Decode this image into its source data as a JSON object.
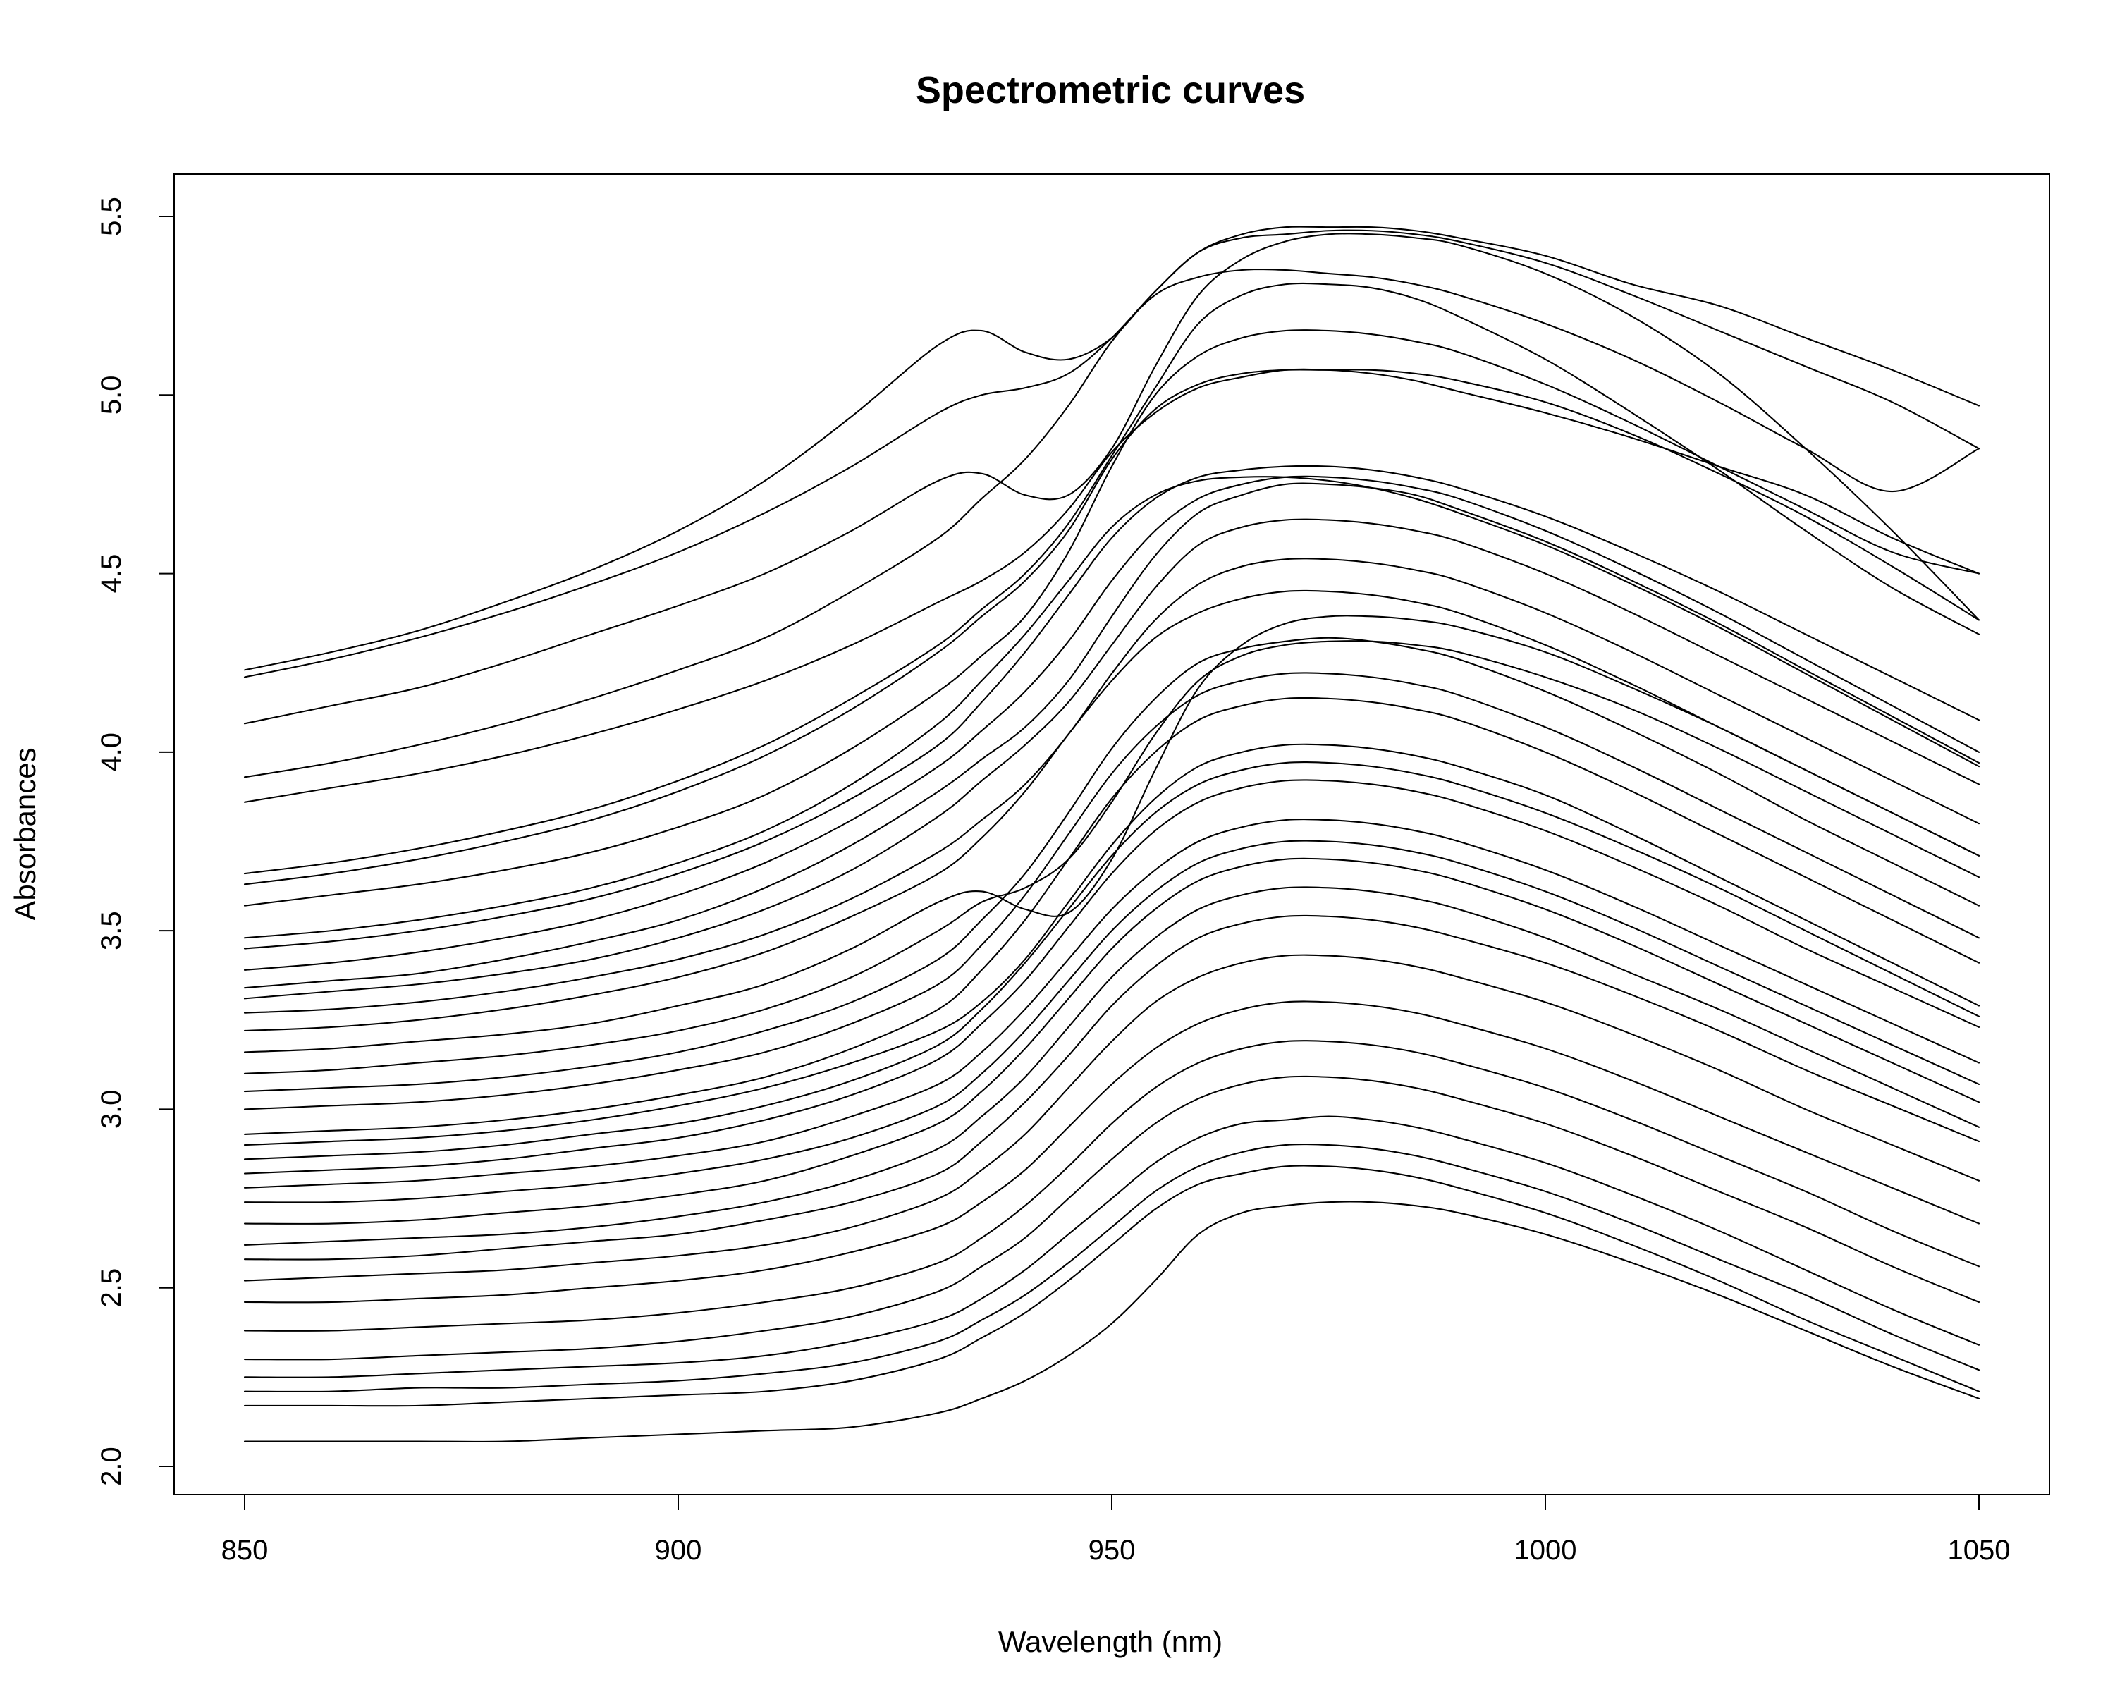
{
  "chart_data": {
    "type": "line",
    "title": "Spectrometric curves",
    "xlabel": "Wavelength (nm)",
    "ylabel": "Absorbances",
    "xlim": [
      850,
      1050
    ],
    "ylim": [
      2.0,
      5.5
    ],
    "x_ticks": [
      850,
      900,
      950,
      1000,
      1050
    ],
    "y_ticks": [
      2.0,
      2.5,
      3.0,
      3.5,
      4.0,
      4.5,
      5.0,
      5.5
    ],
    "x_tick_labels": [
      "850",
      "900",
      "950",
      "1000",
      "1050"
    ],
    "y_tick_labels": [
      "2.0",
      "2.5",
      "3.0",
      "3.5",
      "4.0",
      "4.5",
      "5.0",
      "5.5"
    ],
    "grid": false,
    "legend": "none",
    "line_color": "#000000",
    "x": [
      850,
      860,
      870,
      880,
      890,
      900,
      910,
      920,
      930,
      935,
      940,
      945,
      950,
      955,
      960,
      965,
      970,
      975,
      980,
      985,
      990,
      1000,
      1010,
      1020,
      1030,
      1040,
      1050
    ],
    "series": [
      {
        "values": [
          2.07,
          2.07,
          2.07,
          2.07,
          2.08,
          2.09,
          2.1,
          2.11,
          2.15,
          2.19,
          2.24,
          2.31,
          2.4,
          2.52,
          2.65,
          2.71,
          2.73,
          2.74,
          2.74,
          2.73,
          2.71,
          2.65,
          2.57,
          2.48,
          2.38,
          2.28,
          2.19
        ]
      },
      {
        "values": [
          2.17,
          2.17,
          2.17,
          2.18,
          2.19,
          2.2,
          2.21,
          2.24,
          2.3,
          2.36,
          2.43,
          2.52,
          2.62,
          2.72,
          2.79,
          2.82,
          2.84,
          2.84,
          2.83,
          2.81,
          2.78,
          2.71,
          2.62,
          2.52,
          2.41,
          2.31,
          2.21
        ]
      },
      {
        "values": [
          2.21,
          2.21,
          2.22,
          2.22,
          2.23,
          2.24,
          2.26,
          2.29,
          2.35,
          2.41,
          2.48,
          2.57,
          2.67,
          2.77,
          2.84,
          2.88,
          2.9,
          2.9,
          2.89,
          2.87,
          2.84,
          2.77,
          2.68,
          2.58,
          2.48,
          2.37,
          2.27
        ]
      },
      {
        "values": [
          2.25,
          2.25,
          2.26,
          2.27,
          2.28,
          2.29,
          2.31,
          2.35,
          2.41,
          2.47,
          2.55,
          2.65,
          2.75,
          2.85,
          2.92,
          2.96,
          2.97,
          2.98,
          2.97,
          2.95,
          2.92,
          2.85,
          2.76,
          2.66,
          2.55,
          2.44,
          2.34
        ]
      },
      {
        "values": [
          2.3,
          2.3,
          2.31,
          2.32,
          2.33,
          2.35,
          2.38,
          2.42,
          2.49,
          2.56,
          2.64,
          2.75,
          2.86,
          2.96,
          3.03,
          3.07,
          3.09,
          3.09,
          3.08,
          3.06,
          3.03,
          2.96,
          2.87,
          2.77,
          2.67,
          2.56,
          2.46
        ]
      },
      {
        "values": [
          2.38,
          2.38,
          2.39,
          2.4,
          2.41,
          2.43,
          2.46,
          2.5,
          2.57,
          2.64,
          2.73,
          2.84,
          2.96,
          3.06,
          3.13,
          3.17,
          3.19,
          3.19,
          3.18,
          3.16,
          3.13,
          3.06,
          2.97,
          2.87,
          2.77,
          2.66,
          2.56
        ]
      },
      {
        "values": [
          2.46,
          2.46,
          2.47,
          2.48,
          2.5,
          2.52,
          2.55,
          2.6,
          2.67,
          2.74,
          2.83,
          2.95,
          3.07,
          3.17,
          3.24,
          3.28,
          3.3,
          3.3,
          3.29,
          3.27,
          3.24,
          3.17,
          3.08,
          2.98,
          2.88,
          2.78,
          2.68
        ]
      },
      {
        "values": [
          2.52,
          2.53,
          2.54,
          2.55,
          2.57,
          2.59,
          2.62,
          2.67,
          2.75,
          2.83,
          2.93,
          3.06,
          3.19,
          3.3,
          3.37,
          3.41,
          3.43,
          3.43,
          3.42,
          3.4,
          3.37,
          3.3,
          3.21,
          3.11,
          3.0,
          2.9,
          2.8
        ]
      },
      {
        "values": [
          2.58,
          2.58,
          2.59,
          2.61,
          2.63,
          2.65,
          2.69,
          2.74,
          2.82,
          2.91,
          3.02,
          3.15,
          3.29,
          3.4,
          3.48,
          3.52,
          3.54,
          3.54,
          3.53,
          3.51,
          3.48,
          3.41,
          3.32,
          3.22,
          3.11,
          3.01,
          2.91
        ]
      },
      {
        "values": [
          2.62,
          2.63,
          2.64,
          2.65,
          2.67,
          2.7,
          2.74,
          2.8,
          2.89,
          2.98,
          3.09,
          3.23,
          3.37,
          3.48,
          3.56,
          3.6,
          3.62,
          3.62,
          3.61,
          3.59,
          3.56,
          3.48,
          3.38,
          3.28,
          3.17,
          3.06,
          2.95
        ]
      },
      {
        "values": [
          2.68,
          2.68,
          2.69,
          2.71,
          2.73,
          2.76,
          2.8,
          2.87,
          2.96,
          3.05,
          3.17,
          3.31,
          3.45,
          3.56,
          3.64,
          3.68,
          3.7,
          3.7,
          3.69,
          3.67,
          3.64,
          3.56,
          3.46,
          3.35,
          3.24,
          3.13,
          3.02
        ]
      },
      {
        "values": [
          2.74,
          2.74,
          2.75,
          2.77,
          2.79,
          2.82,
          2.86,
          2.92,
          3.01,
          3.1,
          3.22,
          3.36,
          3.5,
          3.61,
          3.69,
          3.73,
          3.75,
          3.75,
          3.74,
          3.72,
          3.69,
          3.61,
          3.51,
          3.4,
          3.29,
          3.18,
          3.07
        ]
      },
      {
        "values": [
          2.78,
          2.79,
          2.8,
          2.82,
          2.84,
          2.87,
          2.91,
          2.98,
          3.07,
          3.16,
          3.28,
          3.42,
          3.56,
          3.67,
          3.75,
          3.79,
          3.81,
          3.81,
          3.8,
          3.78,
          3.75,
          3.67,
          3.57,
          3.46,
          3.35,
          3.24,
          3.13
        ]
      },
      {
        "values": [
          2.82,
          2.83,
          2.84,
          2.86,
          2.89,
          2.92,
          2.97,
          3.04,
          3.14,
          3.24,
          3.36,
          3.51,
          3.66,
          3.78,
          3.86,
          3.9,
          3.92,
          3.92,
          3.91,
          3.89,
          3.86,
          3.78,
          3.68,
          3.57,
          3.45,
          3.34,
          3.23
        ]
      },
      {
        "values": [
          2.86,
          2.87,
          2.88,
          2.9,
          2.93,
          2.96,
          3.01,
          3.08,
          3.18,
          3.28,
          3.41,
          3.56,
          3.71,
          3.83,
          3.91,
          3.95,
          3.97,
          3.97,
          3.96,
          3.94,
          3.91,
          3.83,
          3.73,
          3.62,
          3.5,
          3.38,
          3.26
        ]
      },
      {
        "values": [
          2.9,
          2.91,
          2.92,
          2.94,
          2.97,
          3.01,
          3.06,
          3.13,
          3.22,
          3.3,
          3.42,
          3.58,
          3.74,
          3.87,
          3.96,
          4.0,
          4.02,
          4.02,
          4.01,
          3.99,
          3.96,
          3.88,
          3.77,
          3.65,
          3.53,
          3.41,
          3.29
        ]
      },
      {
        "values": [
          2.93,
          2.94,
          2.95,
          2.97,
          3.0,
          3.04,
          3.09,
          3.17,
          3.28,
          3.39,
          3.53,
          3.7,
          3.87,
          4.0,
          4.09,
          4.13,
          4.15,
          4.15,
          4.14,
          4.12,
          4.09,
          4.0,
          3.89,
          3.77,
          3.65,
          3.53,
          3.41
        ]
      },
      {
        "values": [
          3.0,
          3.01,
          3.02,
          3.04,
          3.07,
          3.11,
          3.16,
          3.24,
          3.35,
          3.46,
          3.6,
          3.77,
          3.94,
          4.07,
          4.16,
          4.2,
          4.22,
          4.22,
          4.21,
          4.19,
          4.16,
          4.07,
          3.96,
          3.84,
          3.72,
          3.6,
          3.48
        ]
      },
      {
        "values": [
          3.05,
          3.06,
          3.07,
          3.09,
          3.12,
          3.16,
          3.22,
          3.3,
          3.42,
          3.53,
          3.66,
          3.83,
          4.01,
          4.15,
          4.25,
          4.29,
          4.31,
          4.32,
          4.31,
          4.29,
          4.26,
          4.17,
          4.06,
          3.94,
          3.81,
          3.69,
          3.57
        ]
      },
      {
        "values": [
          3.1,
          3.11,
          3.13,
          3.15,
          3.18,
          3.22,
          3.28,
          3.37,
          3.5,
          3.58,
          3.62,
          3.7,
          3.86,
          4.05,
          4.2,
          4.27,
          4.3,
          4.31,
          4.31,
          4.3,
          4.28,
          4.21,
          4.12,
          4.01,
          3.89,
          3.77,
          3.65
        ]
      },
      {
        "values": [
          3.16,
          3.17,
          3.19,
          3.21,
          3.24,
          3.29,
          3.35,
          3.45,
          3.58,
          3.61,
          3.56,
          3.55,
          3.7,
          3.95,
          4.18,
          4.3,
          4.36,
          4.38,
          4.38,
          4.37,
          4.35,
          4.28,
          4.18,
          4.07,
          3.95,
          3.83,
          3.71
        ]
      },
      {
        "values": [
          3.22,
          3.23,
          3.25,
          3.28,
          3.32,
          3.37,
          3.44,
          3.54,
          3.66,
          3.76,
          3.89,
          4.05,
          4.2,
          4.32,
          4.39,
          4.43,
          4.45,
          4.45,
          4.44,
          4.42,
          4.39,
          4.3,
          4.19,
          4.07,
          3.95,
          3.83,
          3.71
        ]
      },
      {
        "values": [
          3.27,
          3.28,
          3.3,
          3.33,
          3.37,
          3.42,
          3.49,
          3.59,
          3.72,
          3.81,
          3.91,
          4.05,
          4.22,
          4.37,
          4.47,
          4.52,
          4.54,
          4.54,
          4.53,
          4.51,
          4.48,
          4.39,
          4.28,
          4.16,
          4.04,
          3.92,
          3.8
        ]
      },
      {
        "values": [
          3.31,
          3.33,
          3.35,
          3.38,
          3.42,
          3.48,
          3.56,
          3.67,
          3.82,
          3.92,
          4.02,
          4.14,
          4.3,
          4.46,
          4.58,
          4.63,
          4.65,
          4.65,
          4.64,
          4.62,
          4.59,
          4.5,
          4.39,
          4.27,
          4.15,
          4.03,
          3.91
        ]
      },
      {
        "values": [
          3.34,
          3.36,
          3.38,
          3.42,
          3.47,
          3.53,
          3.62,
          3.74,
          3.89,
          3.98,
          4.07,
          4.2,
          4.38,
          4.55,
          4.67,
          4.72,
          4.75,
          4.75,
          4.74,
          4.72,
          4.68,
          4.59,
          4.48,
          4.36,
          4.23,
          4.1,
          3.97
        ]
      },
      {
        "values": [
          3.39,
          3.41,
          3.44,
          3.48,
          3.53,
          3.6,
          3.69,
          3.81,
          3.96,
          4.06,
          4.17,
          4.31,
          4.48,
          4.62,
          4.71,
          4.75,
          4.77,
          4.77,
          4.76,
          4.74,
          4.71,
          4.62,
          4.51,
          4.39,
          4.26,
          4.13,
          4.0
        ]
      },
      {
        "values": [
          3.45,
          3.47,
          3.5,
          3.54,
          3.59,
          3.66,
          3.75,
          3.87,
          4.02,
          4.14,
          4.28,
          4.44,
          4.6,
          4.71,
          4.77,
          4.79,
          4.8,
          4.8,
          4.79,
          4.77,
          4.74,
          4.66,
          4.56,
          4.45,
          4.33,
          4.21,
          4.09
        ]
      },
      {
        "values": [
          3.48,
          3.5,
          3.53,
          3.57,
          3.62,
          3.69,
          3.78,
          3.91,
          4.08,
          4.2,
          4.33,
          4.48,
          4.63,
          4.72,
          4.76,
          4.77,
          4.77,
          4.76,
          4.74,
          4.71,
          4.67,
          4.58,
          4.47,
          4.35,
          4.22,
          4.09,
          3.96
        ]
      },
      {
        "values": [
          3.57,
          3.6,
          3.63,
          3.67,
          3.72,
          3.79,
          3.88,
          4.01,
          4.17,
          4.27,
          4.38,
          4.56,
          4.8,
          5.0,
          5.11,
          5.16,
          5.18,
          5.18,
          5.17,
          5.15,
          5.12,
          5.03,
          4.92,
          4.8,
          4.68,
          4.56,
          4.5
        ]
      },
      {
        "values": [
          3.63,
          3.66,
          3.7,
          3.75,
          3.81,
          3.89,
          3.99,
          4.12,
          4.28,
          4.38,
          4.48,
          4.62,
          4.82,
          4.96,
          5.03,
          5.06,
          5.07,
          5.07,
          5.07,
          5.06,
          5.04,
          4.98,
          4.89,
          4.78,
          4.66,
          4.52,
          4.37
        ]
      },
      {
        "values": [
          3.66,
          3.69,
          3.73,
          3.78,
          3.84,
          3.92,
          4.02,
          4.15,
          4.3,
          4.4,
          4.5,
          4.64,
          4.83,
          5.02,
          5.2,
          5.28,
          5.31,
          5.31,
          5.3,
          5.27,
          5.22,
          5.1,
          4.95,
          4.79,
          4.62,
          4.46,
          4.33
        ]
      },
      {
        "values": [
          3.86,
          3.9,
          3.94,
          3.99,
          4.05,
          4.12,
          4.2,
          4.3,
          4.42,
          4.48,
          4.56,
          4.68,
          4.84,
          4.95,
          5.02,
          5.05,
          5.07,
          5.07,
          5.06,
          5.04,
          5.01,
          4.95,
          4.88,
          4.8,
          4.72,
          4.6,
          4.5
        ]
      },
      {
        "values": [
          3.93,
          3.97,
          4.02,
          4.08,
          4.15,
          4.23,
          4.32,
          4.45,
          4.6,
          4.71,
          4.82,
          4.97,
          5.15,
          5.28,
          5.33,
          5.35,
          5.35,
          5.34,
          5.33,
          5.31,
          5.28,
          5.2,
          5.1,
          4.98,
          4.85,
          4.73,
          4.85
        ]
      },
      {
        "values": [
          4.08,
          4.13,
          4.18,
          4.25,
          4.33,
          4.41,
          4.5,
          4.62,
          4.76,
          4.78,
          4.72,
          4.72,
          4.85,
          5.08,
          5.28,
          5.38,
          5.43,
          5.45,
          5.45,
          5.44,
          5.42,
          5.34,
          5.22,
          5.06,
          4.85,
          4.62,
          4.37
        ]
      },
      {
        "values": [
          4.21,
          4.26,
          4.32,
          4.39,
          4.47,
          4.56,
          4.67,
          4.8,
          4.95,
          5.0,
          5.02,
          5.06,
          5.16,
          5.29,
          5.4,
          5.44,
          5.45,
          5.46,
          5.46,
          5.45,
          5.43,
          5.37,
          5.28,
          5.18,
          5.08,
          4.98,
          4.85
        ]
      },
      {
        "values": [
          4.23,
          4.28,
          4.34,
          4.42,
          4.51,
          4.62,
          4.76,
          4.94,
          5.14,
          5.18,
          5.12,
          5.1,
          5.16,
          5.29,
          5.4,
          5.45,
          5.47,
          5.47,
          5.47,
          5.46,
          5.44,
          5.39,
          5.31,
          5.25,
          5.16,
          5.07,
          4.97
        ]
      }
    ]
  }
}
